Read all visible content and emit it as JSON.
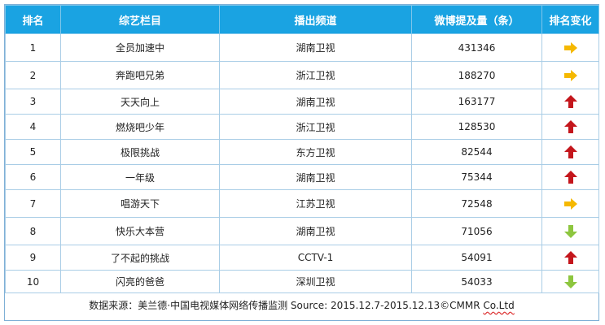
{
  "colors": {
    "header_bg": "#1aa3e2",
    "arrow_up": "#c4161c",
    "arrow_right": "#f5b800",
    "arrow_down": "#8dc63f"
  },
  "headers": [
    "排名",
    "综艺栏目",
    "播出频道",
    "微博提及量（条）",
    "排名变化"
  ],
  "rows": [
    {
      "rank": "1",
      "show": "全员加速中",
      "channel": "湖南卫视",
      "mentions": "431346",
      "change": "right-arrow-icon"
    },
    {
      "rank": "2",
      "show": "奔跑吧兄弟",
      "channel": "浙江卫视",
      "mentions": "188270",
      "change": "right-arrow-icon"
    },
    {
      "rank": "3",
      "show": "天天向上",
      "channel": "湖南卫视",
      "mentions": "163177",
      "change": "up-arrow-icon"
    },
    {
      "rank": "4",
      "show": "燃烧吧少年",
      "channel": "浙江卫视",
      "mentions": "128530",
      "change": "up-arrow-icon"
    },
    {
      "rank": "5",
      "show": "极限挑战",
      "channel": "东方卫视",
      "mentions": "82544",
      "change": "up-arrow-icon"
    },
    {
      "rank": "6",
      "show": "一年级",
      "channel": "湖南卫视",
      "mentions": "75344",
      "change": "up-arrow-icon"
    },
    {
      "rank": "7",
      "show": "唱游天下",
      "channel": "江苏卫视",
      "mentions": "72548",
      "change": "right-arrow-icon"
    },
    {
      "rank": "8",
      "show": "快乐大本营",
      "channel": "湖南卫视",
      "mentions": "71056",
      "change": "down-arrow-icon"
    },
    {
      "rank": "9",
      "show": "了不起的挑战",
      "channel": "CCTV-1",
      "mentions": "54091",
      "change": "up-arrow-icon"
    },
    {
      "rank": "10",
      "show": "闪亮的爸爸",
      "channel": "深圳卫视",
      "mentions": "54033",
      "change": "down-arrow-icon"
    }
  ],
  "footer": {
    "source_text": "数据来源：美兰德·中国电视媒体网络传播监测   Source: 2015.12.7-2015.12.13©CMMR ",
    "company": "Co.Ltd"
  }
}
